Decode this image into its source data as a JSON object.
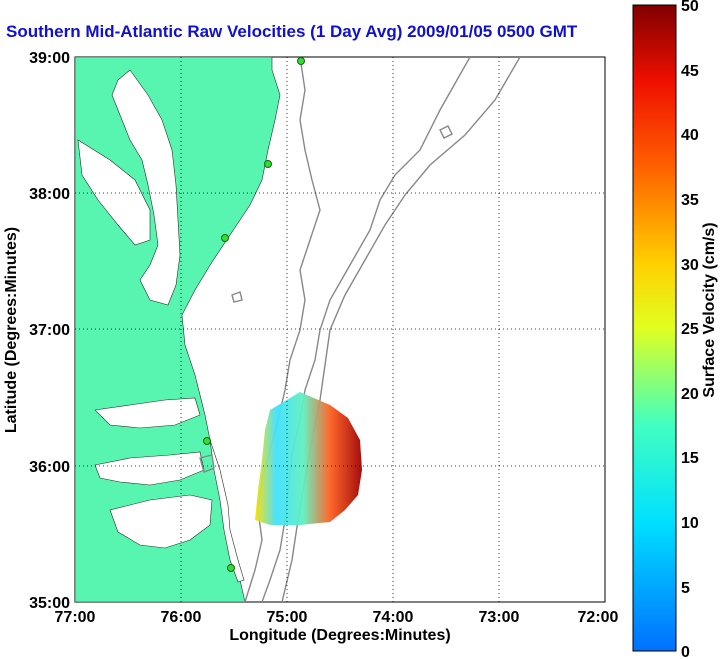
{
  "title": "Southern Mid-Atlantic Raw Velocities (1 Day Avg) 2009/01/05 0500 GMT",
  "map": {
    "xlabel": "Longitude (Degrees:Minutes)",
    "ylabel": "Latitude (Degrees:Minutes)",
    "x_ticks": [
      "77:00",
      "76:00",
      "75:00",
      "74:00",
      "73:00",
      "72:00"
    ],
    "y_ticks": [
      "39:00",
      "38:00",
      "37:00",
      "36:00",
      "35:00"
    ],
    "land_color": "#57f5b0",
    "site_color": "#33dd33",
    "grid": "dotted"
  },
  "colorbar": {
    "label": "Surface Velocity (cm/s)",
    "ticks": [
      "50",
      "45",
      "40",
      "35",
      "30",
      "25",
      "20",
      "15",
      "10",
      "5",
      "0"
    ],
    "min": 0,
    "max": 50,
    "colormap": "jet"
  }
}
